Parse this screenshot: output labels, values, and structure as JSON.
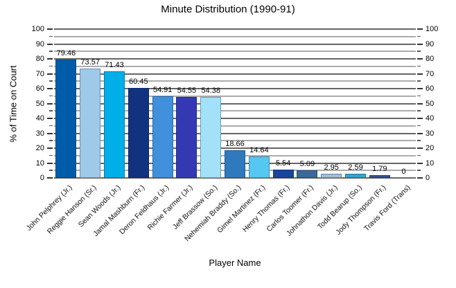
{
  "chart_data": {
    "type": "bar",
    "title": "Minute Distribution (1990-91)",
    "xlabel": "Player Name",
    "ylabel": "% of Time on Court",
    "ylim": [
      0,
      100
    ],
    "ytick_major_step": 10,
    "ytick_minor_step": 5,
    "grid": {
      "major_color": "#666666",
      "minor_color": "#ababab",
      "horizontal_only": true
    },
    "legend_position": "none",
    "categories": [
      "John Pelphrey (Jr.)",
      "Reggie Hanson (Sr.)",
      "Sean Woods (Jr.)",
      "Jamal Mashburn (Fr.)",
      "Deron Feldhaus (Jr.)",
      "Richie Farmer (Jr.)",
      "Jeff Brassow (So.)",
      "Nehemiah Braddy (So.)",
      "Gimel Martinez (Fr.)",
      "Henry Thomas (Fr.)",
      "Carlos Toomer (Fr.)",
      "Johnathon Davis (Jr.)",
      "Todd Bearup (So.)",
      "Jody Thompson (Fr.)",
      "Travis Ford (Trans)"
    ],
    "values": [
      79.46,
      73.57,
      71.43,
      60.45,
      54.91,
      54.55,
      54.38,
      18.66,
      14.64,
      5.54,
      5.09,
      2.95,
      2.59,
      1.79,
      0
    ],
    "value_labels": [
      "79.46",
      "73.57",
      "71.43",
      "60.45",
      "54.91",
      "54.55",
      "54.38",
      "18.66",
      "14.64",
      "5.54",
      "5.09",
      "2.95",
      "2.59",
      "1.79",
      "0"
    ],
    "bar_colors": [
      "#005CA9",
      "#9FC9E8",
      "#00AEE8",
      "#12317F",
      "#4090DB",
      "#3439B3",
      "#A3E1F8",
      "#2F79BE",
      "#55C7F2",
      "#16459B",
      "#3A699B",
      "#A2BDD8",
      "#2EA7D1",
      "#33518F",
      "#888888"
    ]
  }
}
